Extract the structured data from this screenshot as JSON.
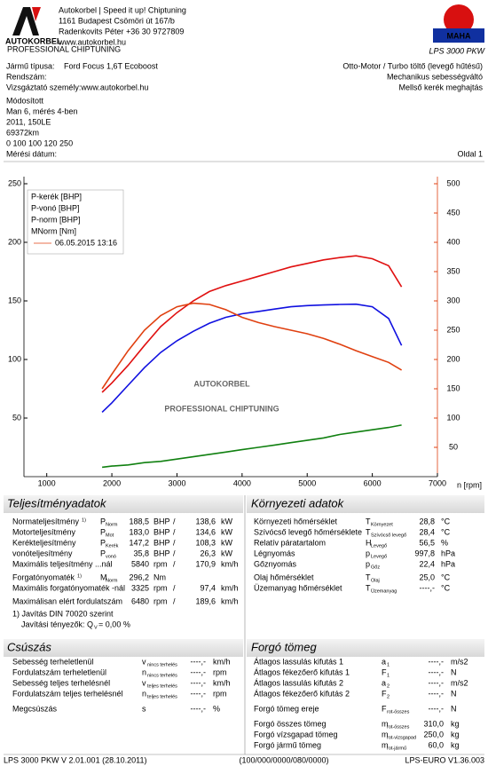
{
  "header": {
    "logo": {
      "name": "AUTOKORBEL",
      "tagline": "PROFESSIONAL CHIPTUNING"
    },
    "company": [
      "Autokorbel | Speed it up! Chiptuning",
      "1161 Budapest Csömöri út 167/b",
      "Radenkovits Péter +36 30 9727809",
      "www.autokorbel.hu"
    ],
    "maha": {
      "name": "MAHA",
      "model": "LPS 3000 PKW"
    }
  },
  "vehicle": {
    "left": [
      [
        "Jármű típusa:",
        "Ford Focus 1,6T Ecoboost"
      ],
      [
        "Rendszám:"
      ],
      [
        "Vizsgáztató személy:www.autokorbel.hu"
      ]
    ],
    "right": [
      "Otto-Motor / Turbo töltő (levegő hűtésű)",
      "Mechanikus sebességváltó",
      "Mellső kerék meghajtás"
    ],
    "notes": [
      "Módosított",
      "Man 6, mérés 4-ben",
      "2011, 150LE",
      "69372km",
      "0 100 100 120 250"
    ],
    "date_label": "Mérési dátum:",
    "page": "Oldal 1"
  },
  "chart_data": {
    "type": "line",
    "annotation": "06.05.2015 13:16",
    "xlabel": "n [rpm]",
    "x": [
      1850,
      2000,
      2250,
      2500,
      2750,
      3000,
      3250,
      3500,
      3750,
      4000,
      4250,
      4500,
      4750,
      5000,
      5250,
      5500,
      5750,
      6000,
      6250,
      6450
    ],
    "xlim": [
      650,
      7000
    ],
    "xticks": [
      1000,
      2000,
      3000,
      4000,
      5000,
      6000,
      7000
    ],
    "ylim": [
      0,
      250
    ],
    "yticks": [
      50,
      100,
      150,
      200,
      250
    ],
    "y2lim": [
      0,
      500
    ],
    "y2ticks": [
      50,
      100,
      150,
      200,
      250,
      300,
      350,
      400,
      450,
      500
    ],
    "series": [
      {
        "name": "P-kerék [BHP]",
        "color": "#1010e0",
        "values": [
          55,
          63,
          78,
          93,
          106,
          116,
          124,
          131,
          136,
          139,
          141,
          143,
          145,
          146,
          146.5,
          147,
          147.2,
          145,
          135,
          112
        ]
      },
      {
        "name": "P-vonó [BHP]",
        "color": "#108010",
        "values": [
          8,
          9,
          10,
          12,
          13,
          15,
          17,
          19,
          21,
          23,
          25,
          27,
          29,
          31,
          33,
          36,
          38,
          40,
          42,
          44
        ]
      },
      {
        "name": "P-norm [BHP]",
        "color": "#e01010",
        "values": [
          72,
          80,
          95,
          112,
          128,
          140,
          150,
          158,
          163,
          167,
          171,
          175,
          179,
          182,
          185,
          187,
          188.5,
          186,
          180,
          162
        ]
      },
      {
        "name": "MNorm [Nm]",
        "color": "#e04010",
        "axis": "y2",
        "values": [
          150,
          175,
          215,
          250,
          275,
          290,
          296,
          294,
          285,
          272,
          263,
          256,
          250,
          244,
          236,
          226,
          215,
          205,
          195,
          182
        ]
      }
    ]
  },
  "watermark": {
    "name": "AUTOKORBEL",
    "tagline": "PROFESSIONAL CHIPTUNING"
  },
  "power": {
    "title": "Teljesítményadatok",
    "rows": [
      {
        "label": "Normateljesítmény",
        "note": "1)",
        "sym": "P",
        "sub": "Norm",
        "v1": "188,5",
        "u1": "BHP",
        "sep": "/",
        "v2": "138,6",
        "u2": "kW",
        "color": "#e01010"
      },
      {
        "label": "Motorteljesítmény",
        "sym": "P",
        "sub": "Mot",
        "v1": "183,0",
        "u1": "BHP",
        "sep": "/",
        "v2": "134,6",
        "u2": "kW",
        "color": "#e01010"
      },
      {
        "label": "Kerékteljesítmény",
        "sym": "P",
        "sub": "Kerék",
        "v1": "147,2",
        "u1": "BHP",
        "sep": "/",
        "v2": "108,3",
        "u2": "kW",
        "color": "#1010e0"
      },
      {
        "label": "vonóteljesítmény",
        "sym": "P",
        "sub": "vonó",
        "v1": "35,8",
        "u1": "BHP",
        "sep": "/",
        "v2": "26,3",
        "u2": "kW",
        "color": "#108010"
      },
      {
        "label": "Maximális teljesítmény ...nál",
        "v1": "5840",
        "u1": "rpm",
        "sep": "/",
        "v2": "170,9",
        "u2": "km/h",
        "color": "#000000"
      },
      {
        "label": "Forgatónyomaték",
        "note": "1)",
        "sym": "M",
        "sub": "Norm",
        "v1": "296,2",
        "u1": "Nm",
        "color": "#e04010"
      },
      {
        "label": "Maximális forgatónyomaték -nál",
        "v1": "3325",
        "u1": "rpm",
        "sep": "/",
        "v2": "97,4",
        "u2": "km/h",
        "color": "#000000"
      },
      {
        "label": "Maximálisan elért fordulatszám",
        "v1": "6480",
        "u1": "rpm",
        "sep": "/",
        "v2": "189,6",
        "u2": "km/h",
        "color": "#000000"
      }
    ],
    "footnote": [
      "1) Javítás DIN 70020 szerint",
      "Javítási tényezők: Q"
    ],
    "factor_sub": "V",
    "factor_value": " =   0,00 %"
  },
  "environment": {
    "title": "Környezeti adatok",
    "rows": [
      {
        "label": "Környezeti hőmérséklet",
        "sym": "T",
        "sub": "Környezet",
        "v1": "28,8",
        "u1": "°C"
      },
      {
        "label": "Szívócső levegő hőmérséklete",
        "sym": "T",
        "sub": "Szívócső levegő",
        "v1": "28,4",
        "u1": "°C"
      },
      {
        "label": "Relatív páratartalom",
        "sym": "H",
        "sub": "Levegő",
        "v1": "56,5",
        "u1": "%"
      },
      {
        "label": "Légnyomás",
        "sym": "p",
        "sub": "Levegő",
        "v1": "997,8",
        "u1": "hPa"
      },
      {
        "label": "Gőznyomás",
        "sym": "p",
        "sub": "Gőz",
        "v1": "22,4",
        "u1": "hPa"
      },
      {
        "label": "Olaj hőmérséklet",
        "sym": "T",
        "sub": "Olaj",
        "v1": "25,0",
        "u1": "°C"
      },
      {
        "label": "Üzemanyag hőmérséklet",
        "sym": "T",
        "sub": "Üzemanyag",
        "v1": "----,-",
        "u1": "°C"
      }
    ]
  },
  "slip": {
    "title": "Csúszás",
    "rows": [
      {
        "label": "Sebesség terheletlenül",
        "sym": "v",
        "sub": "nincs terhelés",
        "v1": "----,-",
        "u1": "km/h"
      },
      {
        "label": "Fordulatszám terheletlenül",
        "sym": "n",
        "sub": "nincs terhelés",
        "v1": "----,-",
        "u1": "rpm"
      },
      {
        "label": "Sebesség teljes terhelésnél",
        "sym": "v",
        "sub": "teljes terhelés",
        "v1": "----,-",
        "u1": "km/h"
      },
      {
        "label": "Fordulatszám teljes terhelésnél",
        "sym": "n",
        "sub": "teljes terhelés",
        "v1": "----,-",
        "u1": "rpm"
      },
      {
        "label": "Megcsúszás",
        "sym": "s",
        "v1": "----,-",
        "u1": "%"
      }
    ]
  },
  "mass": {
    "title": "Forgó tömeg",
    "rows": [
      {
        "label": "Átlagos lassulás kifutás 1",
        "sym": "a",
        "sub": "1",
        "v1": "----,-",
        "u1": "m/s2"
      },
      {
        "label": "Átlagos fékezőerő kifutás 1",
        "sym": "F",
        "sub": "1",
        "v1": "----,-",
        "u1": "N"
      },
      {
        "label": "Átlagos lassulás kifutás 2",
        "sym": "a",
        "sub": "2",
        "v1": "----,-",
        "u1": "m/s2"
      },
      {
        "label": "Átlagos fékezőerő kifutás 2",
        "sym": "F",
        "sub": "2",
        "v1": "----,-",
        "u1": "N"
      },
      {
        "label": "Forgó tömeg ereje",
        "sym": "F",
        "sub": "rot-összes",
        "v1": "----,-",
        "u1": "N"
      },
      {
        "label": "Forgó összes tömeg",
        "sym": "m",
        "sub": "rot-összes",
        "v1": "310,0",
        "u1": "kg"
      },
      {
        "label": "Forgó vízsgapad tömeg",
        "sym": "m",
        "sub": "rot-vizsgapad",
        "v1": "250,0",
        "u1": "kg"
      },
      {
        "label": "Forgó jármű tömeg",
        "sym": "m",
        "sub": "rot-jármű",
        "v1": "60,0",
        "u1": "kg"
      }
    ]
  },
  "footer": [
    "LPS 3000 PKW V 2.01.001 (28.10.2011)",
    "(100/000/0000/080/0000)",
    "LPS-EURO V1.36.003"
  ]
}
